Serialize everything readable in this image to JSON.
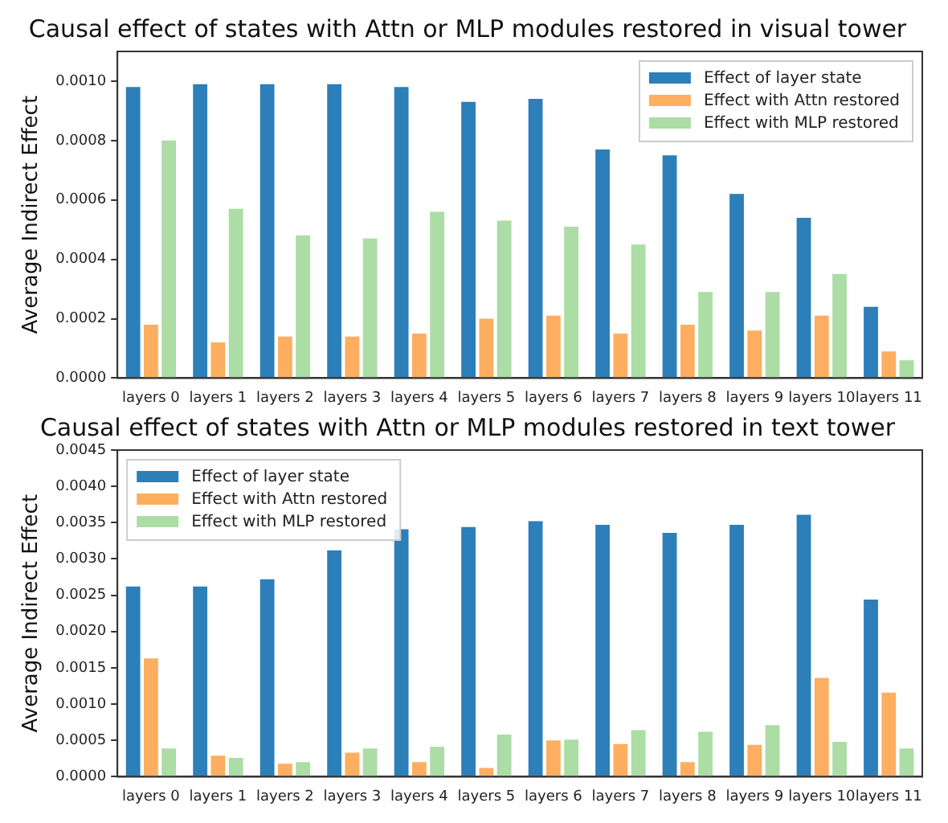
{
  "chart_data": [
    {
      "type": "bar",
      "title": "Causal effect of states with Attn or MLP modules restored in visual tower",
      "ylabel": "Average Indirect Effect",
      "categories": [
        "layers 0",
        "layers 1",
        "layers 2",
        "layers 3",
        "layers 4",
        "layers 5",
        "layers 6",
        "layers 7",
        "layers 8",
        "layers 9",
        "layers 10",
        "layers 11"
      ],
      "series": [
        {
          "name": "Effect of layer state",
          "color": "#2c7fb8",
          "values": [
            0.00098,
            0.00099,
            0.00099,
            0.00099,
            0.00098,
            0.00093,
            0.00094,
            0.00077,
            0.00075,
            0.00062,
            0.00054,
            0.00024
          ]
        },
        {
          "name": "Effect with Attn restored",
          "color": "#fdae61",
          "values": [
            0.00018,
            0.00012,
            0.00014,
            0.00014,
            0.00015,
            0.0002,
            0.00021,
            0.00015,
            0.00018,
            0.00016,
            0.00021,
            9e-05
          ]
        },
        {
          "name": "Effect with MLP restored",
          "color": "#abdda4",
          "values": [
            0.0008,
            0.00057,
            0.00048,
            0.00047,
            0.00056,
            0.00053,
            0.00051,
            0.00045,
            0.00029,
            0.00029,
            0.00035,
            6e-05
          ]
        }
      ],
      "ylim": [
        0,
        0.0011
      ],
      "yticks": [
        {
          "value": 0,
          "label": "0.0000"
        },
        {
          "value": 0.0002,
          "label": "0.0002"
        },
        {
          "value": 0.0004,
          "label": "0.0004"
        },
        {
          "value": 0.0006,
          "label": "0.0006"
        },
        {
          "value": 0.0008,
          "label": "0.0008"
        },
        {
          "value": 0.001,
          "label": "0.0010"
        }
      ],
      "legend": "top right"
    },
    {
      "type": "bar",
      "title": "Causal effect of states with Attn or MLP modules restored in text tower",
      "ylabel": "Average Indirect Effect",
      "categories": [
        "layers 0",
        "layers 1",
        "layers 2",
        "layers 3",
        "layers 4",
        "layers 5",
        "layers 6",
        "layers 7",
        "layers 8",
        "layers 9",
        "layers 10",
        "layers 11"
      ],
      "series": [
        {
          "name": "Effect of layer state",
          "color": "#2c7fb8",
          "values": [
            0.00262,
            0.00262,
            0.00272,
            0.00312,
            0.00341,
            0.00344,
            0.00352,
            0.00347,
            0.00336,
            0.00347,
            0.00361,
            0.00244
          ]
        },
        {
          "name": "Effect with Attn restored",
          "color": "#fdae61",
          "values": [
            0.00163,
            0.00029,
            0.00018,
            0.00033,
            0.0002,
            0.00012,
            0.0005,
            0.00045,
            0.0002,
            0.00044,
            0.00136,
            0.00116
          ]
        },
        {
          "name": "Effect with MLP restored",
          "color": "#abdda4",
          "values": [
            0.00039,
            0.00026,
            0.0002,
            0.00039,
            0.00041,
            0.00058,
            0.00051,
            0.00064,
            0.00062,
            0.00071,
            0.00048,
            0.00039
          ]
        }
      ],
      "ylim": [
        0,
        0.0045
      ],
      "yticks": [
        {
          "value": 0,
          "label": "0.0000"
        },
        {
          "value": 0.0005,
          "label": "0.0005"
        },
        {
          "value": 0.001,
          "label": "0.0010"
        },
        {
          "value": 0.0015,
          "label": "0.0015"
        },
        {
          "value": 0.002,
          "label": "0.0020"
        },
        {
          "value": 0.0025,
          "label": "0.0025"
        },
        {
          "value": 0.003,
          "label": "0.0030"
        },
        {
          "value": 0.0035,
          "label": "0.0035"
        },
        {
          "value": 0.004,
          "label": "0.0040"
        },
        {
          "value": 0.0045,
          "label": "0.0045"
        }
      ],
      "legend": "top left"
    }
  ]
}
